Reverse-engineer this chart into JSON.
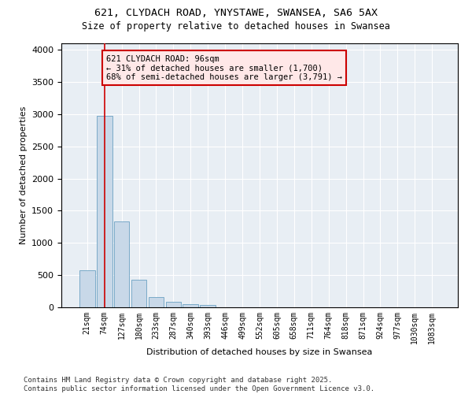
{
  "title_line1": "621, CLYDACH ROAD, YNYSTAWE, SWANSEA, SA6 5AX",
  "title_line2": "Size of property relative to detached houses in Swansea",
  "xlabel": "Distribution of detached houses by size in Swansea",
  "ylabel": "Number of detached properties",
  "bar_color": "#c8d8e8",
  "bar_edge_color": "#7aaac8",
  "background_color": "#e8eef4",
  "tick_labels": [
    "21sqm",
    "74sqm",
    "127sqm",
    "180sqm",
    "233sqm",
    "287sqm",
    "340sqm",
    "393sqm",
    "446sqm",
    "499sqm",
    "552sqm",
    "605sqm",
    "658sqm",
    "711sqm",
    "764sqm",
    "818sqm",
    "871sqm",
    "924sqm",
    "977sqm",
    "1030sqm",
    "1083sqm"
  ],
  "bar_heights": [
    580,
    2970,
    1340,
    430,
    160,
    80,
    50,
    40,
    0,
    0,
    0,
    0,
    0,
    0,
    0,
    0,
    0,
    0,
    0,
    0,
    0
  ],
  "ylim": [
    0,
    4100
  ],
  "yticks": [
    0,
    500,
    1000,
    1500,
    2000,
    2500,
    3000,
    3500,
    4000
  ],
  "vline_x": 1.0,
  "vline_color": "#cc0000",
  "annotation_text": "621 CLYDACH ROAD: 96sqm\n← 31% of detached houses are smaller (1,700)\n68% of semi-detached houses are larger (3,791) →",
  "annotation_box_facecolor": "#ffe8e8",
  "annotation_box_edge": "#cc0000",
  "footer_text": "Contains HM Land Registry data © Crown copyright and database right 2025.\nContains public sector information licensed under the Open Government Licence v3.0.",
  "title_fontsize": 9.5,
  "subtitle_fontsize": 8.5,
  "axis_label_fontsize": 8,
  "tick_fontsize": 7,
  "annotation_fontsize": 7.5,
  "footer_fontsize": 6.5
}
